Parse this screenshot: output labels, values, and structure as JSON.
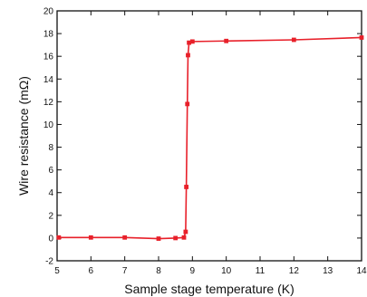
{
  "chart_data": {
    "type": "line",
    "xlabel": "Sample stage temperature (K)",
    "ylabel": "Wire resistance (mΩ)",
    "xlim": [
      5,
      14
    ],
    "ylim": [
      -2,
      20
    ],
    "xticks": [
      5,
      6,
      7,
      8,
      9,
      10,
      11,
      12,
      13,
      14
    ],
    "yticks": [
      -2,
      0,
      2,
      4,
      6,
      8,
      10,
      12,
      14,
      16,
      18,
      20
    ],
    "grid": false,
    "legend": "none",
    "series": [
      {
        "color": "#e8202a",
        "marker": "square",
        "x": [
          5.05,
          6.0,
          7.0,
          8.0,
          8.5,
          8.75,
          8.8,
          8.82,
          8.85,
          8.87,
          8.9,
          9.0,
          10.0,
          12.0,
          14.0
        ],
        "y": [
          0.05,
          0.05,
          0.05,
          -0.05,
          0.0,
          0.05,
          0.55,
          4.5,
          11.8,
          16.1,
          17.2,
          17.3,
          17.35,
          17.45,
          17.65
        ]
      }
    ]
  }
}
